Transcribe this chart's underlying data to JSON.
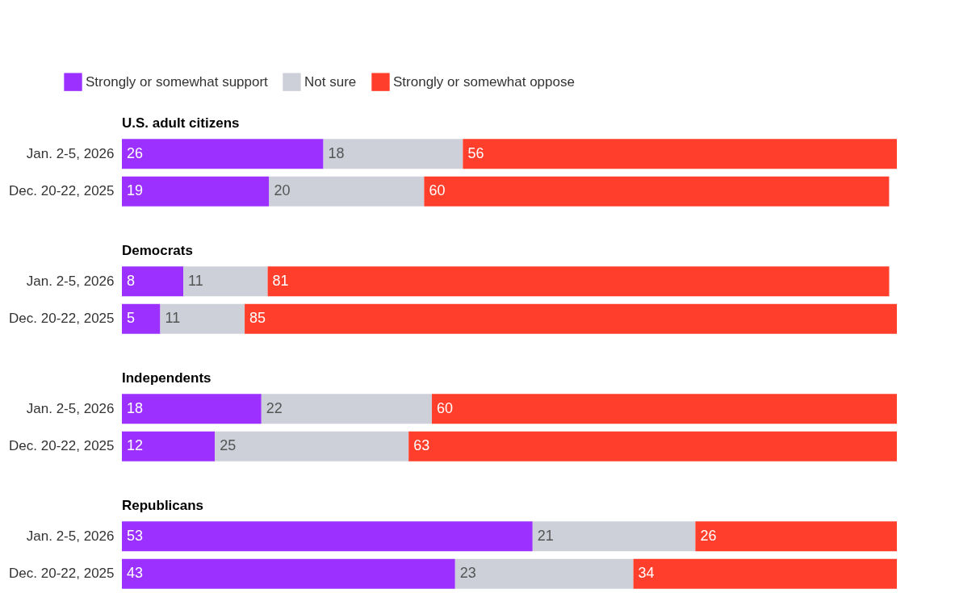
{
  "chart_data": [
    {
      "type": "bar",
      "orientation": "horizontal",
      "stacked": true,
      "data_labels": true,
      "legend": "top",
      "tick_labels": "y",
      "title": "U.S. adult citizens",
      "categories": [
        "Jan. 2-5, 2026",
        "Dec. 20-22, 2025"
      ],
      "series": [
        {
          "name": "Strongly or somewhat support",
          "color": "#9b30ff",
          "values": [
            26,
            19
          ]
        },
        {
          "name": "Not sure",
          "color": "#cdd0d9",
          "values": [
            18,
            20
          ]
        },
        {
          "name": "Strongly or somewhat oppose",
          "color": "#ff3f2b",
          "values": [
            56,
            60
          ]
        }
      ]
    },
    {
      "type": "bar",
      "orientation": "horizontal",
      "stacked": true,
      "data_labels": true,
      "tick_labels": "y",
      "title": "Democrats",
      "categories": [
        "Jan. 2-5, 2026",
        "Dec. 20-22, 2025"
      ],
      "series": [
        {
          "color": "#9b30ff",
          "values": [
            8,
            5
          ]
        },
        {
          "color": "#cdd0d9",
          "values": [
            11,
            11
          ]
        },
        {
          "color": "#ff3f2b",
          "values": [
            81,
            85
          ]
        }
      ]
    },
    {
      "type": "bar",
      "orientation": "horizontal",
      "stacked": true,
      "data_labels": true,
      "tick_labels": "y",
      "title": "Independents",
      "categories": [
        "Jan. 2-5, 2026",
        "Dec. 20-22, 2025"
      ],
      "series": [
        {
          "color": "#9b30ff",
          "values": [
            18,
            12
          ]
        },
        {
          "color": "#cdd0d9",
          "values": [
            22,
            25
          ]
        },
        {
          "color": "#ff3f2b",
          "values": [
            60,
            63
          ]
        }
      ]
    },
    {
      "type": "bar",
      "orientation": "horizontal",
      "stacked": true,
      "data_labels": true,
      "tick_labels": "y",
      "title": "Republicans",
      "categories": [
        "Jan. 2-5, 2026",
        "Dec. 20-22, 2025"
      ],
      "series": [
        {
          "color": "#9b30ff",
          "values": [
            53,
            43
          ]
        },
        {
          "color": "#cdd0d9",
          "values": [
            21,
            23
          ]
        },
        {
          "color": "#ff3f2b",
          "values": [
            26,
            34
          ]
        }
      ]
    }
  ]
}
